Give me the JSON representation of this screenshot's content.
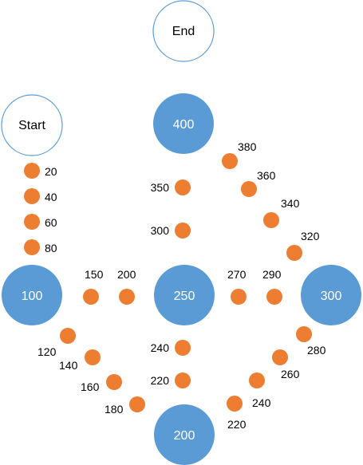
{
  "colors": {
    "big_node": "#5B9BD5",
    "big_node_text": "#ffffff",
    "outline_node": "#5B9BD5",
    "outline_node_fill": "#ffffff",
    "outline_node_text": "#000000",
    "dot": "#ED7D31",
    "label": "#000000"
  },
  "nodes": {
    "end": "End",
    "start": "Start",
    "n400": "400",
    "n100": "100",
    "n250": "250",
    "n300": "300",
    "n200": "200"
  },
  "dot_labels": {
    "start_column": [
      "20",
      "40",
      "60",
      "80"
    ],
    "top_middle": [
      "350",
      "300"
    ],
    "top_right_diagonal": [
      "380",
      "360",
      "340",
      "320"
    ],
    "middle_row_left": [
      "150",
      "200"
    ],
    "middle_row_right": [
      "270",
      "290"
    ],
    "bottom_left_diagonal": [
      "120",
      "140",
      "160",
      "180"
    ],
    "bottom_middle": [
      "240",
      "220"
    ],
    "bottom_right_diagonal": [
      "280",
      "260",
      "240",
      "220"
    ]
  }
}
